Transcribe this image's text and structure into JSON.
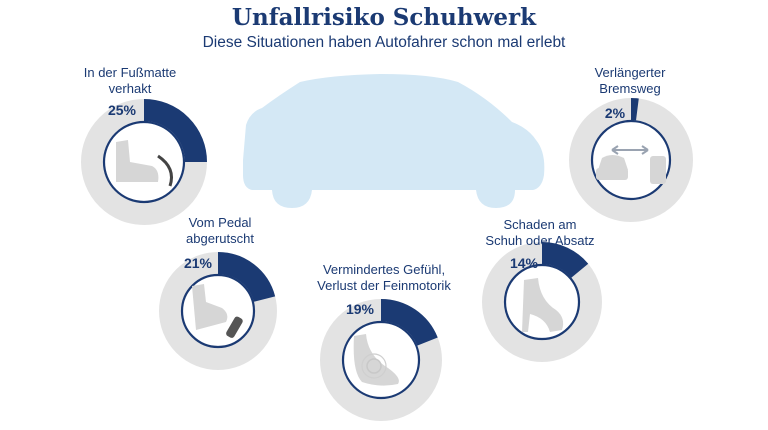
{
  "title": "Unfallrisiko Schuhwerk",
  "subtitle": "Diese Situationen haben Autofahrer schon mal erlebt",
  "chart_data": {
    "type": "pie",
    "title": "Unfallrisiko Schuhwerk",
    "subtitle": "Diese Situationen haben Autofahrer schon mal erlebt",
    "categories": [
      "In der Fußmatte verhakt",
      "Vom Pedal abgerutscht",
      "Vermindertes Gefühl, Verlust der Feinmotorik",
      "Schaden am Schuh oder Absatz",
      "Verlängerter Bremsweg"
    ],
    "values": [
      25,
      21,
      19,
      14,
      2
    ],
    "unit": "%",
    "colors": {
      "value": "#1b3a73",
      "track": "#e3e3e3",
      "car": "#d4e8f5",
      "icon": "#d6d6d6"
    }
  },
  "items": [
    {
      "label_lines": [
        "In der Fußmatte",
        "verhakt"
      ],
      "percent_label": "25%",
      "value": 25,
      "icon": "shoe-on-floormat-icon"
    },
    {
      "label_lines": [
        "Vom Pedal",
        "abgerutscht"
      ],
      "percent_label": "21%",
      "value": 21,
      "icon": "shoe-slipping-off-pedal-icon"
    },
    {
      "label_lines": [
        "Vermindertes Gefühl,",
        "Verlust der Feinmotorik"
      ],
      "percent_label": "19%",
      "value": 19,
      "icon": "bare-foot-icon"
    },
    {
      "label_lines": [
        "Schaden am",
        "Schuh oder Absatz"
      ],
      "percent_label": "14%",
      "value": 14,
      "icon": "high-heel-icon"
    },
    {
      "label_lines": [
        "Verlängerter",
        "Bremsweg"
      ],
      "percent_label": "2%",
      "value": 2,
      "icon": "braking-distance-icon"
    }
  ]
}
